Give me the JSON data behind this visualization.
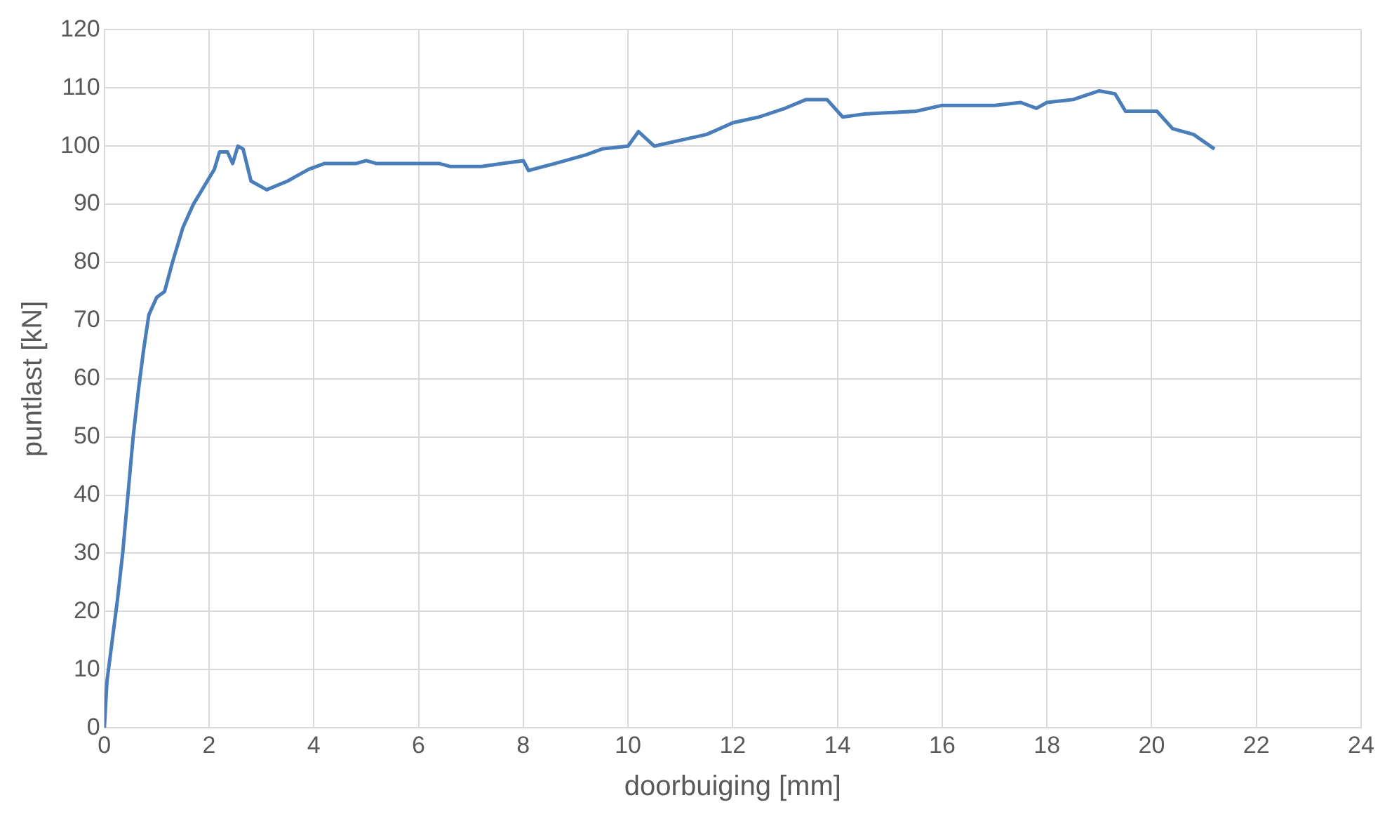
{
  "chart_data": {
    "type": "line",
    "xlabel": "doorbuiging [mm]",
    "ylabel": "puntlast [kN]",
    "xlim": [
      0,
      24
    ],
    "xticks": [
      0,
      2,
      4,
      6,
      8,
      10,
      12,
      14,
      16,
      18,
      20,
      22,
      24
    ],
    "ylim": [
      0,
      120
    ],
    "yticks": [
      0,
      10,
      20,
      30,
      40,
      50,
      60,
      70,
      80,
      90,
      100,
      110,
      120
    ],
    "grid": true,
    "legend": false,
    "marker": "none",
    "line_style": "solid",
    "series": [
      {
        "color": "#4a7ebb",
        "x": [
          0,
          0.05,
          0.15,
          0.25,
          0.35,
          0.45,
          0.55,
          0.65,
          0.75,
          0.85,
          1.0,
          1.15,
          1.3,
          1.5,
          1.7,
          1.9,
          2.1,
          2.2,
          2.35,
          2.45,
          2.55,
          2.65,
          2.8,
          3.1,
          3.5,
          3.9,
          4.2,
          4.8,
          5.0,
          5.2,
          6.4,
          6.6,
          7.2,
          7.6,
          8.0,
          8.1,
          8.6,
          9.2,
          9.5,
          10.0,
          10.2,
          10.5,
          11.0,
          11.5,
          12.0,
          12.5,
          13.0,
          13.4,
          13.8,
          14.1,
          14.5,
          15.5,
          16.0,
          16.5,
          17.0,
          17.5,
          17.8,
          18.0,
          18.5,
          19.0,
          19.3,
          19.5,
          20.1,
          20.4,
          20.8,
          21.2
        ],
        "values": [
          0,
          8,
          15,
          22,
          30,
          40,
          50,
          58,
          65,
          71,
          74,
          75,
          80,
          86,
          90,
          93,
          96,
          99,
          99,
          97,
          100,
          99.5,
          94,
          92.5,
          94,
          96,
          97,
          97,
          97.5,
          97,
          97,
          96.5,
          96.5,
          97,
          97.5,
          95.8,
          97,
          98.5,
          99.5,
          100,
          102.5,
          100,
          101,
          102,
          104,
          105,
          106.5,
          108,
          108,
          105,
          105.5,
          106,
          107,
          107,
          107,
          107.5,
          106.5,
          107.5,
          108,
          109.5,
          109,
          106,
          106,
          103,
          102,
          99.5
        ]
      }
    ]
  }
}
